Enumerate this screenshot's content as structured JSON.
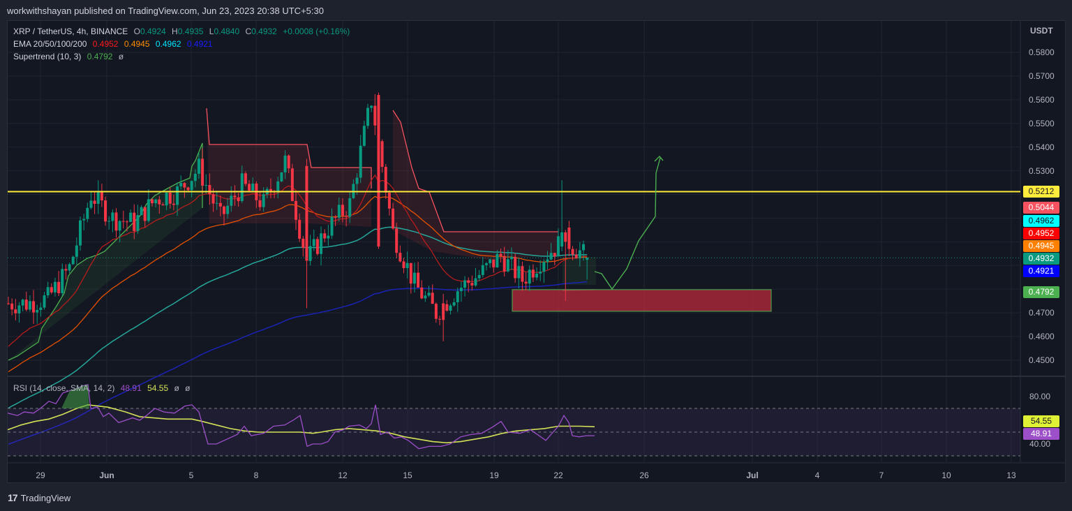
{
  "header": {
    "published": "workwithshayan published on TradingView.com, Jun 23, 2023 20:38 UTC+5:30"
  },
  "legend": {
    "symbol": "XRP / TetherUS, 4h, BINANCE",
    "open_label": "O",
    "open": "0.4924",
    "high_label": "H",
    "high": "0.4935",
    "low_label": "L",
    "low": "0.4840",
    "close_label": "C",
    "close": "0.4932",
    "change": "+0.0008 (+0.16%)",
    "ema_label": "EMA 20/50/100/200",
    "ema20": "0.4952",
    "ema50": "0.4945",
    "ema100": "0.4962",
    "ema200": "0.4921",
    "supertrend_label": "Supertrend (10, 3)",
    "supertrend": "0.4792",
    "supertrend_extra": "ø"
  },
  "rsi_legend": {
    "label": "RSI (14, close, SMA, 14, 2)",
    "rsi": "48.91",
    "sma": "54.55",
    "extra1": "ø",
    "extra2": "ø"
  },
  "price_axis": {
    "currency": "USDT",
    "ticks": [
      "0.5800",
      "0.5700",
      "0.5600",
      "0.5500",
      "0.5400",
      "0.5300",
      "0.4700",
      "0.4600",
      "0.4500"
    ]
  },
  "price_tags": [
    {
      "value": "0.5212",
      "bg": "#ffeb3b",
      "fg": "#131722"
    },
    {
      "value": "0.5044",
      "bg": "#f7525f",
      "fg": "#ffffff"
    },
    {
      "value": "0.4962",
      "bg": "#00ffff",
      "fg": "#131722"
    },
    {
      "value": "0.4952",
      "bg": "#ff0000",
      "fg": "#ffffff"
    },
    {
      "value": "0.4945",
      "bg": "#ff7f00",
      "fg": "#ffffff"
    },
    {
      "value": "0.4932",
      "bg": "#089981",
      "fg": "#ffffff"
    },
    {
      "value": "0.4921",
      "bg": "#0000ff",
      "fg": "#ffffff"
    },
    {
      "value": "0.4792",
      "bg": "#4caf50",
      "fg": "#ffffff"
    }
  ],
  "rsi_axis": {
    "ticks": [
      "80.00",
      "40.00"
    ]
  },
  "rsi_tags": [
    {
      "value": "54.55",
      "bg": "#e0f035",
      "fg": "#131722"
    },
    {
      "value": "48.91",
      "bg": "#9c4fc9",
      "fg": "#ffffff"
    }
  ],
  "time_axis": [
    "29",
    "Jun",
    "5",
    "8",
    "12",
    "15",
    "19",
    "22",
    "26",
    "Jul",
    "4",
    "7",
    "10",
    "13"
  ],
  "footer": {
    "brand": "TradingView",
    "logo": "17"
  },
  "colors": {
    "up": "#089981",
    "down": "#f23645",
    "ema20": "#b71c1c",
    "ema50": "#e65100",
    "ema100": "#26a69a",
    "ema200": "#1a23b6",
    "resistance": "#ffeb3b",
    "support_zone": "#9c2f3c",
    "rsi": "#9c4fc9",
    "rsi_sma": "#d4e157"
  },
  "chart_data": {
    "type": "candlestick",
    "title": "XRP / TetherUS, 4h, BINANCE",
    "xlabel": "",
    "ylabel": "USDT",
    "ylim": [
      0.445,
      0.585
    ],
    "x_ticks": [
      "29",
      "Jun",
      "5",
      "8",
      "12",
      "15",
      "19",
      "22",
      "26",
      "Jul",
      "4",
      "7",
      "10",
      "13"
    ],
    "ohlc_last": {
      "open": 0.4924,
      "high": 0.4935,
      "low": 0.484,
      "close": 0.4932,
      "change": 0.0008,
      "change_pct": 0.16
    },
    "approx_close_path": [
      {
        "date": "May 28",
        "close": 0.474
      },
      {
        "date": "May 29",
        "close": 0.476
      },
      {
        "date": "May 30",
        "close": 0.489
      },
      {
        "date": "May 31",
        "close": 0.52
      },
      {
        "date": "Jun 1",
        "close": 0.51
      },
      {
        "date": "Jun 2",
        "close": 0.508
      },
      {
        "date": "Jun 3",
        "close": 0.518
      },
      {
        "date": "Jun 4",
        "close": 0.521
      },
      {
        "date": "Jun 5",
        "close": 0.531
      },
      {
        "date": "Jun 6",
        "close": 0.51
      },
      {
        "date": "Jun 7",
        "close": 0.524
      },
      {
        "date": "Jun 8",
        "close": 0.516
      },
      {
        "date": "Jun 9",
        "close": 0.534
      },
      {
        "date": "Jun 10",
        "close": 0.492
      },
      {
        "date": "Jun 11",
        "close": 0.506
      },
      {
        "date": "Jun 12",
        "close": 0.516
      },
      {
        "date": "Jun 13",
        "close": 0.56
      },
      {
        "date": "Jun 14",
        "close": 0.504
      },
      {
        "date": "Jun 15",
        "close": 0.482
      },
      {
        "date": "Jun 16",
        "close": 0.47
      },
      {
        "date": "Jun 17",
        "close": 0.48
      },
      {
        "date": "Jun 18",
        "close": 0.486
      },
      {
        "date": "Jun 19",
        "close": 0.494
      },
      {
        "date": "Jun 20",
        "close": 0.484
      },
      {
        "date": "Jun 21",
        "close": 0.494
      },
      {
        "date": "Jun 22",
        "close": 0.501
      },
      {
        "date": "Jun 23",
        "close": 0.4932
      }
    ],
    "series": [
      {
        "name": "EMA 20",
        "last": 0.4952
      },
      {
        "name": "EMA 50",
        "last": 0.4945
      },
      {
        "name": "EMA 100",
        "last": 0.4962
      },
      {
        "name": "EMA 200",
        "last": 0.4921
      },
      {
        "name": "Supertrend (10, 3)",
        "last": 0.4792
      }
    ],
    "annotations": [
      {
        "type": "horizontal_line",
        "price": 0.5212,
        "color": "#ffeb3b",
        "label": "resistance"
      },
      {
        "type": "rectangle",
        "price_top": 0.4792,
        "price_bottom": 0.4735,
        "from": "Jun 20",
        "to": "Jul 1",
        "label": "support zone"
      },
      {
        "type": "projection_path",
        "points": [
          [
            0.488,
            "Jun 23"
          ],
          [
            0.4785,
            "Jun 24"
          ],
          [
            0.493,
            "Jun 25"
          ],
          [
            0.505,
            "Jun 26"
          ],
          [
            0.538,
            "Jun 27"
          ]
        ],
        "color": "#4caf50"
      }
    ],
    "rsi": {
      "params": "RSI (14, close, SMA, 14, 2)",
      "value": 48.91,
      "sma": 54.55,
      "bands": [
        70,
        50,
        30
      ],
      "ticks": [
        80,
        40
      ],
      "ylim": [
        25,
        90
      ]
    }
  }
}
